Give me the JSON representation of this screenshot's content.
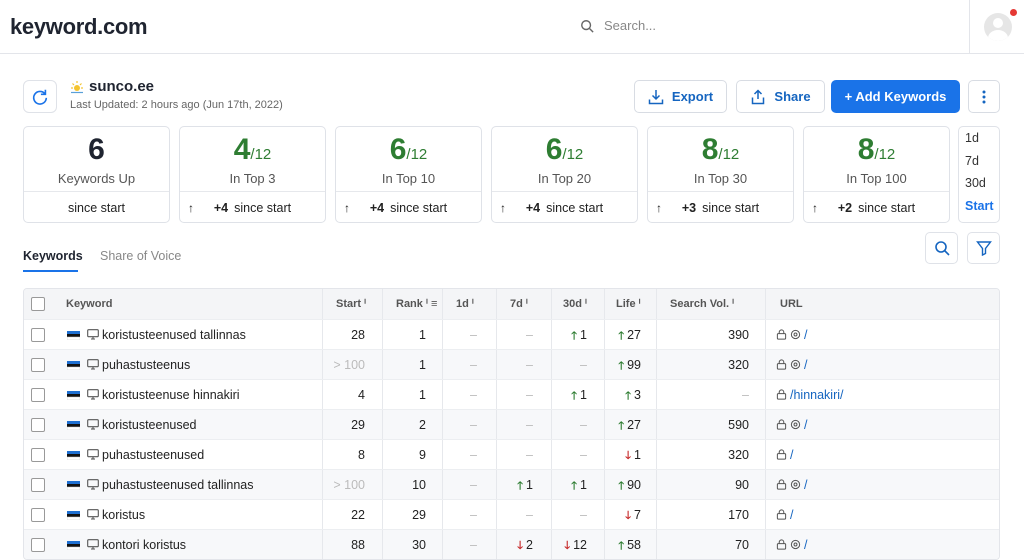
{
  "app": {
    "logo": "keyword.com",
    "search_placeholder": "Search..."
  },
  "project": {
    "domain": "sunco.ee",
    "last_updated": "Last Updated: 2 hours ago (Jun 17th, 2022)"
  },
  "actions": {
    "export": "Export",
    "share": "Share",
    "add": "+ Add Keywords"
  },
  "cards": [
    {
      "big": "6",
      "den": "",
      "label": "Keywords Up",
      "foot_arrow": "",
      "foot_bold": "",
      "foot_text": "since start",
      "color": "#1f2430"
    },
    {
      "big": "4",
      "den": "/12",
      "label": "In Top 3",
      "foot_arrow": "↑",
      "foot_bold": "+4",
      "foot_text": "since start",
      "color": "#2e7d32"
    },
    {
      "big": "6",
      "den": "/12",
      "label": "In Top 10",
      "foot_arrow": "↑",
      "foot_bold": "+4",
      "foot_text": "since start",
      "color": "#2e7d32"
    },
    {
      "big": "6",
      "den": "/12",
      "label": "In Top 20",
      "foot_arrow": "↑",
      "foot_bold": "+4",
      "foot_text": "since start",
      "color": "#2e7d32"
    },
    {
      "big": "8",
      "den": "/12",
      "label": "In Top 30",
      "foot_arrow": "↑",
      "foot_bold": "+3",
      "foot_text": "since start",
      "color": "#2e7d32"
    },
    {
      "big": "8",
      "den": "/12",
      "label": "In Top 100",
      "foot_arrow": "↑",
      "foot_bold": "+2",
      "foot_text": "since start",
      "color": "#2e7d32"
    }
  ],
  "periods": {
    "p1": "1d",
    "p2": "7d",
    "p3": "30d",
    "p4": "Start"
  },
  "tabs": {
    "keywords": "Keywords",
    "sov": "Share of Voice"
  },
  "table": {
    "headers": {
      "keyword": "Keyword",
      "start": "Start ⁱ",
      "rank": "Rank ⁱ ≡",
      "d1": "1d ⁱ",
      "d7": "7d ⁱ",
      "d30": "30d ⁱ",
      "life": "Life ⁱ",
      "vol": "Search Vol. ⁱ",
      "url": "URL"
    },
    "rows": [
      {
        "kw": "koristusteenused tallinnas",
        "start": "28",
        "start_muted": false,
        "rank": "1",
        "d1": "–",
        "d1_dir": "",
        "d7": "–",
        "d7_dir": "",
        "d30": "1",
        "d30_dir": "up",
        "life": "27",
        "life_dir": "up",
        "vol": "390",
        "url": "/",
        "icons": 2
      },
      {
        "kw": "puhastusteenus",
        "start": "> 100",
        "start_muted": true,
        "rank": "1",
        "d1": "–",
        "d1_dir": "",
        "d7": "–",
        "d7_dir": "",
        "d30": "–",
        "d30_dir": "",
        "life": "99",
        "life_dir": "up",
        "vol": "320",
        "url": "/",
        "icons": 2
      },
      {
        "kw": "koristusteenuse hinnakiri",
        "start": "4",
        "start_muted": false,
        "rank": "1",
        "d1": "–",
        "d1_dir": "",
        "d7": "–",
        "d7_dir": "",
        "d30": "1",
        "d30_dir": "up",
        "life": "3",
        "life_dir": "up",
        "vol": "–",
        "url": "/hinnakiri/",
        "icons": 1
      },
      {
        "kw": "koristusteenused",
        "start": "29",
        "start_muted": false,
        "rank": "2",
        "d1": "–",
        "d1_dir": "",
        "d7": "–",
        "d7_dir": "",
        "d30": "–",
        "d30_dir": "",
        "life": "27",
        "life_dir": "up",
        "vol": "590",
        "url": "/",
        "icons": 2
      },
      {
        "kw": "puhastusteenused",
        "start": "8",
        "start_muted": false,
        "rank": "9",
        "d1": "–",
        "d1_dir": "",
        "d7": "–",
        "d7_dir": "",
        "d30": "–",
        "d30_dir": "",
        "life": "1",
        "life_dir": "down",
        "vol": "320",
        "url": "/",
        "icons": 1
      },
      {
        "kw": "puhastusteenused tallinnas",
        "start": "> 100",
        "start_muted": true,
        "rank": "10",
        "d1": "–",
        "d1_dir": "",
        "d7": "1",
        "d7_dir": "up",
        "d30": "1",
        "d30_dir": "up",
        "life": "90",
        "life_dir": "up",
        "vol": "90",
        "url": "/",
        "icons": 2
      },
      {
        "kw": "koristus",
        "start": "22",
        "start_muted": false,
        "rank": "29",
        "d1": "–",
        "d1_dir": "",
        "d7": "–",
        "d7_dir": "",
        "d30": "–",
        "d30_dir": "",
        "life": "7",
        "life_dir": "down",
        "vol": "170",
        "url": "/",
        "icons": 1
      },
      {
        "kw": "kontori koristus",
        "start": "88",
        "start_muted": false,
        "rank": "30",
        "d1": "–",
        "d1_dir": "",
        "d7": "2",
        "d7_dir": "down",
        "d30": "12",
        "d30_dir": "down",
        "life": "58",
        "life_dir": "up",
        "vol": "70",
        "url": "/",
        "icons": 2
      }
    ]
  },
  "colors": {
    "accent": "#1a73e8",
    "positive": "#2e7d32",
    "negative": "#c62828"
  }
}
